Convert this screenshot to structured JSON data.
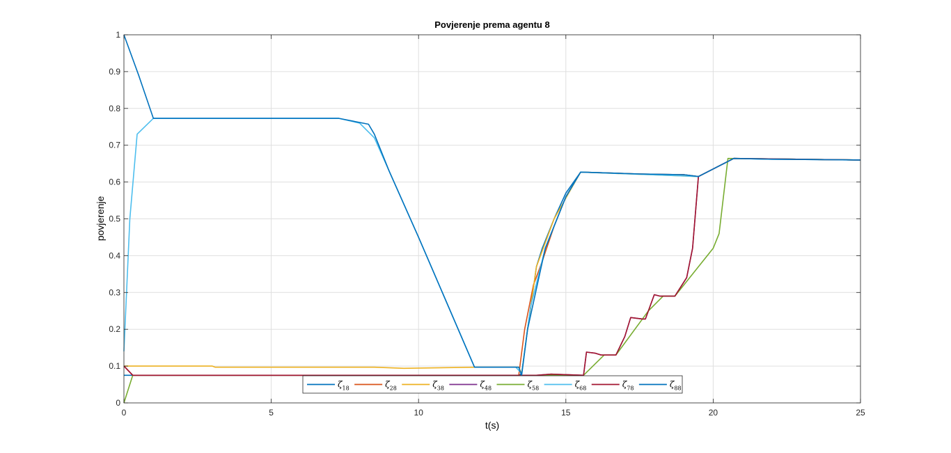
{
  "chart_data": {
    "type": "line",
    "title": "Povjerenje prema agentu 8",
    "xlabel": "t(s)",
    "ylabel": "povjerenje",
    "xlim": [
      0,
      25
    ],
    "ylim": [
      0,
      1
    ],
    "xticks": [
      0,
      5,
      10,
      15,
      20,
      25
    ],
    "yticks": [
      0,
      0.1,
      0.2,
      0.3,
      0.4,
      0.5,
      0.6,
      0.7,
      0.8,
      0.9,
      1
    ],
    "ytick_labels": [
      "0",
      "0.1",
      "0.2",
      "0.3",
      "0.4",
      "0.5",
      "0.6",
      "0.7",
      "0.8",
      "0.9",
      "1"
    ],
    "grid": true,
    "legend": {
      "placement": "bottom-center",
      "orientation": "horizontal"
    },
    "series": [
      {
        "name": "ζ18",
        "symbol": "ζ",
        "sub": "18",
        "color": "#0072BD",
        "points": [
          [
            0,
            0.075
          ],
          [
            13.4,
            0.075
          ],
          [
            13.5,
            0.08
          ],
          [
            13.7,
            0.2
          ],
          [
            14.0,
            0.37
          ],
          [
            14.2,
            0.42
          ],
          [
            14.6,
            0.5
          ],
          [
            15.0,
            0.57
          ],
          [
            15.5,
            0.627
          ],
          [
            17.5,
            0.622
          ],
          [
            19,
            0.62
          ],
          [
            19.5,
            0.615
          ],
          [
            20.7,
            0.664
          ],
          [
            22,
            0.662
          ],
          [
            25,
            0.66
          ]
        ]
      },
      {
        "name": "ζ28",
        "symbol": "ζ",
        "sub": "28",
        "color": "#D95319",
        "points": [
          [
            0,
            0.1
          ],
          [
            0.3,
            0.075
          ],
          [
            13.4,
            0.075
          ],
          [
            13.6,
            0.2
          ],
          [
            13.9,
            0.32
          ],
          [
            14.2,
            0.385
          ],
          [
            14.6,
            0.48
          ],
          [
            15.0,
            0.56
          ],
          [
            15.5,
            0.627
          ],
          [
            17.5,
            0.622
          ],
          [
            19,
            0.62
          ],
          [
            19.5,
            0.615
          ],
          [
            20.7,
            0.664
          ],
          [
            25,
            0.66
          ]
        ]
      },
      {
        "name": "ζ38",
        "symbol": "ζ",
        "sub": "38",
        "color": "#EDB120",
        "points": [
          [
            0,
            0.1
          ],
          [
            3,
            0.1
          ],
          [
            3.1,
            0.097
          ],
          [
            8.5,
            0.097
          ],
          [
            9.5,
            0.094
          ],
          [
            12,
            0.097
          ],
          [
            13.4,
            0.097
          ],
          [
            13.5,
            0.08
          ],
          [
            13.7,
            0.2
          ],
          [
            14.0,
            0.37
          ],
          [
            14.6,
            0.5
          ],
          [
            15.5,
            0.627
          ],
          [
            19.5,
            0.615
          ],
          [
            20.7,
            0.664
          ],
          [
            25,
            0.66
          ]
        ]
      },
      {
        "name": "ζ48",
        "symbol": "ζ",
        "sub": "48",
        "color": "#7E2F8E",
        "points": [
          [
            0,
            0.1
          ],
          [
            0.3,
            0.075
          ],
          [
            14.0,
            0.075
          ],
          [
            14.5,
            0.078
          ],
          [
            15.6,
            0.075
          ],
          [
            15.7,
            0.138
          ],
          [
            16,
            0.135
          ],
          [
            16.2,
            0.13
          ],
          [
            16.7,
            0.13
          ],
          [
            17,
            0.18
          ],
          [
            17.2,
            0.232
          ],
          [
            17.6,
            0.228
          ],
          [
            17.7,
            0.228
          ],
          [
            18,
            0.294
          ],
          [
            18.2,
            0.29
          ],
          [
            18.7,
            0.29
          ],
          [
            19.1,
            0.34
          ],
          [
            19.3,
            0.42
          ],
          [
            19.5,
            0.615
          ],
          [
            20.7,
            0.664
          ],
          [
            25,
            0.66
          ]
        ]
      },
      {
        "name": "ζ58",
        "symbol": "ζ",
        "sub": "58",
        "color": "#77AC30",
        "points": [
          [
            0,
            0.0
          ],
          [
            0.3,
            0.075
          ],
          [
            15.6,
            0.075
          ],
          [
            16.3,
            0.13
          ],
          [
            16.7,
            0.13
          ],
          [
            17.8,
            0.25
          ],
          [
            18.3,
            0.29
          ],
          [
            18.7,
            0.29
          ],
          [
            20.0,
            0.42
          ],
          [
            20.2,
            0.46
          ],
          [
            20.5,
            0.664
          ],
          [
            25,
            0.66
          ]
        ]
      },
      {
        "name": "ζ68",
        "symbol": "ζ",
        "sub": "68",
        "color": "#4DBEEE",
        "points": [
          [
            0,
            0.14
          ],
          [
            0.2,
            0.5
          ],
          [
            0.45,
            0.73
          ],
          [
            1.0,
            0.773
          ],
          [
            7.3,
            0.773
          ],
          [
            8.0,
            0.76
          ],
          [
            8.5,
            0.72
          ],
          [
            9.0,
            0.63
          ],
          [
            10,
            0.45
          ],
          [
            11.9,
            0.097
          ],
          [
            13.3,
            0.097
          ],
          [
            13.5,
            0.08
          ],
          [
            13.8,
            0.26
          ],
          [
            14.3,
            0.42
          ],
          [
            15.0,
            0.56
          ],
          [
            15.5,
            0.627
          ],
          [
            19.5,
            0.615
          ],
          [
            20.7,
            0.664
          ],
          [
            25,
            0.66
          ]
        ]
      },
      {
        "name": "ζ78",
        "symbol": "ζ",
        "sub": "78",
        "color": "#A2142F",
        "points": [
          [
            0,
            0.1
          ],
          [
            0.3,
            0.075
          ],
          [
            14.0,
            0.075
          ],
          [
            14.5,
            0.078
          ],
          [
            15.6,
            0.075
          ],
          [
            15.7,
            0.138
          ],
          [
            16,
            0.135
          ],
          [
            16.2,
            0.13
          ],
          [
            16.7,
            0.13
          ],
          [
            17,
            0.18
          ],
          [
            17.2,
            0.232
          ],
          [
            17.6,
            0.228
          ],
          [
            17.7,
            0.228
          ],
          [
            18,
            0.294
          ],
          [
            18.2,
            0.29
          ],
          [
            18.7,
            0.29
          ],
          [
            19.1,
            0.34
          ],
          [
            19.3,
            0.42
          ],
          [
            19.5,
            0.615
          ],
          [
            20.7,
            0.664
          ],
          [
            25,
            0.66
          ]
        ]
      },
      {
        "name": "ζ88",
        "symbol": "ζ",
        "sub": "88",
        "color": "#0072BD",
        "points": [
          [
            0,
            1.0
          ],
          [
            0.5,
            0.89
          ],
          [
            1.0,
            0.773
          ],
          [
            7.3,
            0.773
          ],
          [
            8.3,
            0.757
          ],
          [
            8.5,
            0.73
          ],
          [
            9.0,
            0.63
          ],
          [
            10,
            0.45
          ],
          [
            11.9,
            0.097
          ],
          [
            13.4,
            0.097
          ],
          [
            13.5,
            0.075
          ],
          [
            13.7,
            0.2
          ],
          [
            14.3,
            0.42
          ],
          [
            15.0,
            0.56
          ],
          [
            15.5,
            0.627
          ],
          [
            17.5,
            0.622
          ],
          [
            19,
            0.62
          ],
          [
            19.5,
            0.615
          ],
          [
            20.7,
            0.664
          ],
          [
            22,
            0.662
          ],
          [
            25,
            0.66
          ]
        ]
      }
    ]
  }
}
